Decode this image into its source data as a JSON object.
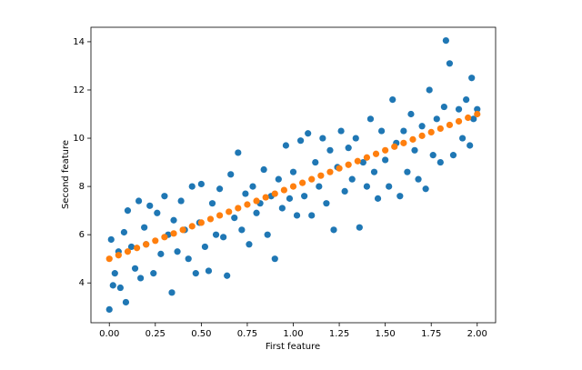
{
  "chart_data": {
    "type": "scatter",
    "xlabel": "First feature",
    "ylabel": "Second feature",
    "xlim": [
      -0.1,
      2.1
    ],
    "ylim": [
      2.35,
      14.6
    ],
    "xticks": [
      {
        "value": 0,
        "label": "0.00"
      },
      {
        "value": 0.25,
        "label": "0.25"
      },
      {
        "value": 0.5,
        "label": "0.50"
      },
      {
        "value": 0.75,
        "label": "0.75"
      },
      {
        "value": 1,
        "label": "1.00"
      },
      {
        "value": 1.25,
        "label": "1.25"
      },
      {
        "value": 1.5,
        "label": "1.50"
      },
      {
        "value": 1.75,
        "label": "1.75"
      },
      {
        "value": 2,
        "label": "2.00"
      }
    ],
    "yticks": [
      4,
      6,
      8,
      10,
      12,
      14
    ],
    "series": [
      {
        "color": "#1f77b4",
        "x": [
          0.0,
          0.01,
          0.02,
          0.03,
          0.05,
          0.06,
          0.08,
          0.09,
          0.1,
          0.12,
          0.14,
          0.16,
          0.17,
          0.19,
          0.2,
          0.22,
          0.24,
          0.26,
          0.28,
          0.3,
          0.32,
          0.34,
          0.35,
          0.37,
          0.39,
          0.41,
          0.43,
          0.45,
          0.47,
          0.49,
          0.5,
          0.52,
          0.54,
          0.56,
          0.58,
          0.6,
          0.62,
          0.64,
          0.66,
          0.68,
          0.7,
          0.72,
          0.74,
          0.76,
          0.78,
          0.8,
          0.82,
          0.84,
          0.86,
          0.88,
          0.9,
          0.92,
          0.94,
          0.96,
          0.98,
          1.0,
          1.02,
          1.04,
          1.06,
          1.08,
          1.1,
          1.12,
          1.14,
          1.16,
          1.18,
          1.2,
          1.22,
          1.24,
          1.26,
          1.28,
          1.3,
          1.32,
          1.34,
          1.36,
          1.38,
          1.4,
          1.42,
          1.44,
          1.46,
          1.48,
          1.5,
          1.52,
          1.54,
          1.56,
          1.58,
          1.6,
          1.62,
          1.64,
          1.66,
          1.68,
          1.7,
          1.72,
          1.74,
          1.76,
          1.78,
          1.8,
          1.82,
          1.83,
          1.85,
          1.87,
          1.9,
          1.92,
          1.94,
          1.96,
          1.97,
          1.98,
          2.0
        ],
        "values": [
          2.9,
          5.8,
          3.9,
          4.4,
          5.3,
          3.8,
          6.1,
          3.2,
          7.0,
          5.5,
          4.6,
          7.4,
          4.2,
          6.3,
          5.6,
          7.2,
          4.4,
          6.9,
          5.2,
          7.6,
          6.0,
          3.6,
          6.6,
          5.3,
          7.4,
          6.2,
          5.0,
          8.0,
          4.4,
          6.5,
          8.1,
          5.5,
          4.5,
          7.3,
          6.0,
          7.9,
          5.9,
          4.3,
          8.5,
          6.7,
          9.4,
          6.2,
          7.7,
          5.6,
          8.0,
          6.9,
          7.3,
          8.7,
          6.0,
          7.6,
          5.0,
          8.3,
          7.1,
          9.7,
          7.5,
          8.6,
          6.8,
          9.9,
          7.6,
          10.2,
          6.8,
          9.0,
          8.0,
          10.0,
          7.3,
          9.5,
          6.2,
          8.8,
          10.3,
          7.8,
          9.6,
          8.3,
          10.0,
          6.3,
          9.0,
          8.0,
          10.8,
          8.6,
          7.5,
          10.3,
          9.1,
          8.0,
          11.6,
          9.8,
          7.6,
          10.3,
          8.6,
          11.0,
          9.5,
          8.3,
          10.5,
          7.9,
          12.0,
          9.3,
          10.8,
          9.0,
          11.3,
          14.05,
          13.1,
          9.3,
          11.2,
          10.0,
          11.6,
          9.7,
          12.5,
          10.8,
          11.2
        ]
      },
      {
        "color": "#ff7f0e",
        "x": [
          0,
          0.05,
          0.1,
          0.15,
          0.2,
          0.25,
          0.3,
          0.35,
          0.4,
          0.45,
          0.5,
          0.55,
          0.6,
          0.65,
          0.7,
          0.75,
          0.8,
          0.85,
          0.9,
          0.95,
          1,
          1.05,
          1.1,
          1.15,
          1.2,
          1.25,
          1.3,
          1.35,
          1.4,
          1.45,
          1.5,
          1.55,
          1.6,
          1.65,
          1.7,
          1.75,
          1.8,
          1.85,
          1.9,
          1.95,
          2
        ],
        "values": [
          5,
          5.15,
          5.3,
          5.45,
          5.6,
          5.75,
          5.9,
          6.05,
          6.2,
          6.35,
          6.5,
          6.65,
          6.8,
          6.95,
          7.1,
          7.25,
          7.4,
          7.55,
          7.7,
          7.85,
          8,
          8.15,
          8.3,
          8.45,
          8.6,
          8.75,
          8.9,
          9.05,
          9.2,
          9.35,
          9.5,
          9.65,
          9.8,
          9.95,
          10.1,
          10.25,
          10.4,
          10.55,
          10.7,
          10.85,
          11
        ]
      }
    ]
  }
}
